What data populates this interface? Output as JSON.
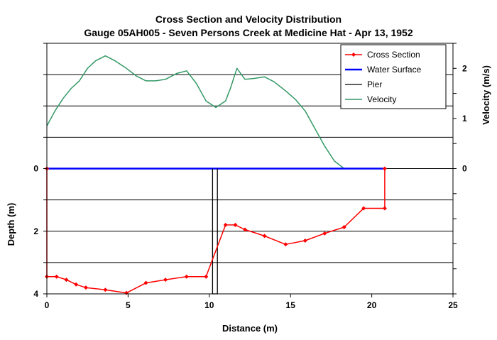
{
  "chart_data": {
    "type": "line",
    "title": "Cross Section and Velocity Distribution",
    "subtitle": "Gauge 05AH005 - Seven Persons Creek at Medicine Hat - Apr 13, 1952",
    "xlabel": "Distance (m)",
    "ylabel": "Depth (m)",
    "y2label": "Velocity (m/s)",
    "xlim": [
      0,
      25
    ],
    "xticks": [
      "0",
      "5",
      "10",
      "15",
      "20",
      "25"
    ],
    "ylim_depth": [
      4,
      -4
    ],
    "yticks_depth": [
      "0",
      "2",
      "4"
    ],
    "ylim_velocity": [
      -2.5,
      2.5
    ],
    "yticks_velocity": [
      "2",
      "1",
      "0"
    ],
    "grid": true,
    "legend_position": "top-right",
    "colors": {
      "cross_section": "#ff0000",
      "water_surface": "#0000ff",
      "pier": "#000000",
      "velocity": "#339966"
    },
    "series": [
      {
        "name": "Cross Section",
        "axis": "depth",
        "x": [
          0,
          0,
          0.6,
          1.2,
          1.8,
          2.4,
          3.6,
          4.9,
          6.1,
          7.3,
          8.6,
          9.8,
          11.0,
          11.6,
          12.2,
          13.4,
          14.7,
          15.9,
          17.1,
          18.3,
          19.5,
          20.8,
          20.8
        ],
        "y": [
          0,
          3.45,
          3.45,
          3.55,
          3.7,
          3.8,
          3.87,
          3.97,
          3.65,
          3.55,
          3.45,
          3.45,
          1.8,
          1.8,
          1.95,
          2.15,
          2.42,
          2.3,
          2.07,
          1.87,
          1.27,
          1.27,
          0
        ]
      },
      {
        "name": "Water Surface",
        "axis": "depth",
        "x": [
          0,
          20.8
        ],
        "y": [
          0,
          0
        ]
      },
      {
        "name": "Pier",
        "axis": "depth",
        "x": [
          10.2,
          10.2,
          10.5,
          10.5
        ],
        "y": [
          0,
          4,
          4,
          0
        ]
      },
      {
        "name": "Velocity",
        "axis": "velocity",
        "x": [
          0,
          0.5,
          1.0,
          1.5,
          2.0,
          2.5,
          3.0,
          3.6,
          4.2,
          4.9,
          5.5,
          6.1,
          6.7,
          7.3,
          8.0,
          8.6,
          9.2,
          9.8,
          10.4,
          11.0,
          11.3,
          11.7,
          12.2,
          12.8,
          13.4,
          14.0,
          14.7,
          15.3,
          15.9,
          16.5,
          17.1,
          17.7,
          18.3,
          18.9,
          19.5,
          20.8
        ],
        "y": [
          0.85,
          1.15,
          1.4,
          1.6,
          1.75,
          2.0,
          2.15,
          2.25,
          2.15,
          2.0,
          1.85,
          1.75,
          1.75,
          1.78,
          1.9,
          1.95,
          1.7,
          1.35,
          1.22,
          1.35,
          1.6,
          2.0,
          1.78,
          1.8,
          1.83,
          1.73,
          1.55,
          1.38,
          1.15,
          0.8,
          0.45,
          0.15,
          0.0,
          0.0,
          0.0,
          0.0
        ]
      }
    ]
  }
}
